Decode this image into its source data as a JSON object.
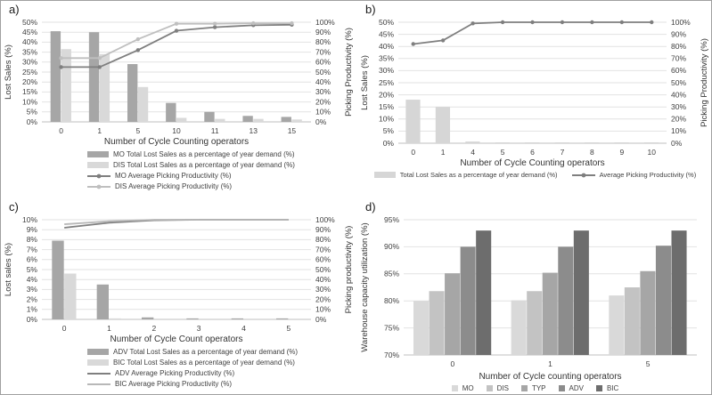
{
  "style": {
    "background": "#ffffff",
    "border_color": "#a0a0a0",
    "grid_color": "#e2e2e2",
    "axis_color": "#bfbfbf",
    "text_color": "#404040"
  },
  "chart_data": [
    {
      "panel_label": "a)",
      "type": "combo-bar-line",
      "grid": true,
      "legend_position": "bottom-column",
      "categories": [
        "0",
        "1",
        "5",
        "10",
        "11",
        "13",
        "15"
      ],
      "x_title": "Number of Cycle Counting operators",
      "y_left": {
        "title": "Lost Sales (%)",
        "min": 0,
        "max": 50,
        "step": 5,
        "suffix": "%",
        "tick_labels": [
          "0%",
          "5%",
          "10%",
          "15%",
          "20%",
          "25%",
          "30%",
          "35%",
          "40%",
          "45%",
          "50%"
        ]
      },
      "y_right": {
        "title": "Picking Productivity (%)",
        "min": 0,
        "max": 100,
        "step": 10,
        "suffix": "%",
        "tick_labels": [
          "0%",
          "10%",
          "20%",
          "30%",
          "40%",
          "50%",
          "60%",
          "70%",
          "80%",
          "90%",
          "100%"
        ]
      },
      "bar_series": [
        {
          "name": "MO Total Lost Sales as a percentage of year demand (%)",
          "color": "#a6a6a6",
          "axis": "left",
          "values": [
            45.5,
            45,
            29,
            9.5,
            5,
            3,
            2.5
          ]
        },
        {
          "name": "DIS Total Lost Sales as a percentage of year demand (%)",
          "color": "#d9d9d9",
          "axis": "left",
          "values": [
            36.5,
            34,
            17.5,
            2,
            1.5,
            1.5,
            1.2
          ]
        }
      ],
      "line_series": [
        {
          "name": "MO Average Picking Productivity (%)",
          "color": "#7f7f7f",
          "marker": true,
          "axis": "right",
          "values": [
            55,
            55,
            72,
            91.5,
            95,
            97,
            97.5
          ]
        },
        {
          "name": "DIS Average Picking Productivity (%)",
          "color": "#bfbfbf",
          "marker": true,
          "axis": "right",
          "values": [
            64,
            64,
            83,
            98.5,
            98.5,
            99,
            99
          ]
        }
      ]
    },
    {
      "panel_label": "b)",
      "type": "combo-bar-line",
      "grid": true,
      "legend_position": "bottom-row",
      "categories": [
        "0",
        "1",
        "4",
        "5",
        "6",
        "7",
        "8",
        "9",
        "10"
      ],
      "x_title": "Number of Cycle Counting operators",
      "y_left": {
        "title": "Lost Sales (%)",
        "min": 0,
        "max": 50,
        "step": 5,
        "suffix": "%",
        "tick_labels": [
          "0%",
          "5%",
          "10%",
          "15%",
          "20%",
          "25%",
          "30%",
          "35%",
          "40%",
          "45%",
          "50%"
        ]
      },
      "y_right": {
        "title": "Picking Productivity (%)",
        "min": 0,
        "max": 100,
        "step": 10,
        "suffix": "%",
        "tick_labels": [
          "0%",
          "10%",
          "20%",
          "30%",
          "40%",
          "50%",
          "60%",
          "70%",
          "80%",
          "90%",
          "100%"
        ]
      },
      "bar_series": [
        {
          "name": "Total Lost Sales as a percentage of year demand (%)",
          "color": "#d6d6d6",
          "axis": "left",
          "values": [
            18,
            15,
            0.7,
            0.3,
            0.3,
            0.3,
            0.3,
            0.3,
            0.3
          ]
        }
      ],
      "line_series": [
        {
          "name": "Average Picking Productivity (%)",
          "color": "#7f7f7f",
          "marker": true,
          "axis": "right",
          "values": [
            82,
            85,
            99,
            100,
            100,
            100,
            100,
            100,
            100
          ]
        }
      ]
    },
    {
      "panel_label": "c)",
      "type": "combo-bar-line",
      "grid": true,
      "legend_position": "bottom-column",
      "categories": [
        "0",
        "1",
        "2",
        "3",
        "4",
        "5"
      ],
      "x_title": "Number of Cycle Count operators",
      "y_left": {
        "title": "Lost sales (%)",
        "min": 0,
        "max": 10,
        "step": 1,
        "suffix": "%",
        "tick_labels": [
          "0%",
          "1%",
          "2%",
          "3%",
          "4%",
          "5%",
          "6%",
          "7%",
          "8%",
          "9%",
          "10%"
        ]
      },
      "y_right": {
        "title": "Picking productivity (%)",
        "min": 0,
        "max": 100,
        "step": 10,
        "suffix": "%",
        "tick_labels": [
          "0%",
          "10%",
          "20%",
          "30%",
          "40%",
          "50%",
          "60%",
          "70%",
          "80%",
          "90%",
          "100%"
        ]
      },
      "bar_series": [
        {
          "name": "ADV Total Lost Sales as a percentage of year demand (%)",
          "color": "#a6a6a6",
          "axis": "left",
          "values": [
            7.9,
            3.5,
            0.2,
            0.1,
            0.1,
            0.1
          ]
        },
        {
          "name": "BIC Total Lost Sales as a percentage of year demand (%)",
          "color": "#d9d9d9",
          "axis": "left",
          "values": [
            4.6,
            0.1,
            0,
            0,
            0,
            0
          ]
        }
      ],
      "line_series": [
        {
          "name": "ADV Average Picking Productivity (%)",
          "color": "#7f7f7f",
          "marker": false,
          "axis": "right",
          "values": [
            92,
            97,
            99.5,
            100,
            100,
            100
          ]
        },
        {
          "name": "BIC Average Picking Productivity (%)",
          "color": "#b8b8b8",
          "marker": false,
          "axis": "right",
          "values": [
            95.5,
            98.5,
            100,
            100,
            100,
            100
          ]
        }
      ]
    },
    {
      "panel_label": "d)",
      "type": "grouped-bar",
      "grid": true,
      "legend_position": "bottom-row",
      "categories": [
        "0",
        "1",
        "5"
      ],
      "x_title": "Number of Cycle counting operators",
      "y": {
        "title": "Warehouse capacity utilization (%)",
        "min": 70,
        "max": 95,
        "step": 5,
        "suffix": "%",
        "tick_labels": [
          "70%",
          "75%",
          "80%",
          "85%",
          "90%",
          "95%"
        ]
      },
      "series": [
        {
          "name": "MO",
          "color": "#d9d9d9",
          "values": [
            80,
            80.1,
            81
          ]
        },
        {
          "name": "DIS",
          "color": "#c3c3c3",
          "values": [
            81.8,
            81.8,
            82.5
          ]
        },
        {
          "name": "TYP",
          "color": "#a6a6a6",
          "values": [
            85.1,
            85.2,
            85.5
          ]
        },
        {
          "name": "ADV",
          "color": "#8c8c8c",
          "values": [
            90,
            90,
            90.2
          ]
        },
        {
          "name": "BIC",
          "color": "#6d6d6d",
          "values": [
            93,
            93,
            93
          ]
        }
      ]
    }
  ]
}
